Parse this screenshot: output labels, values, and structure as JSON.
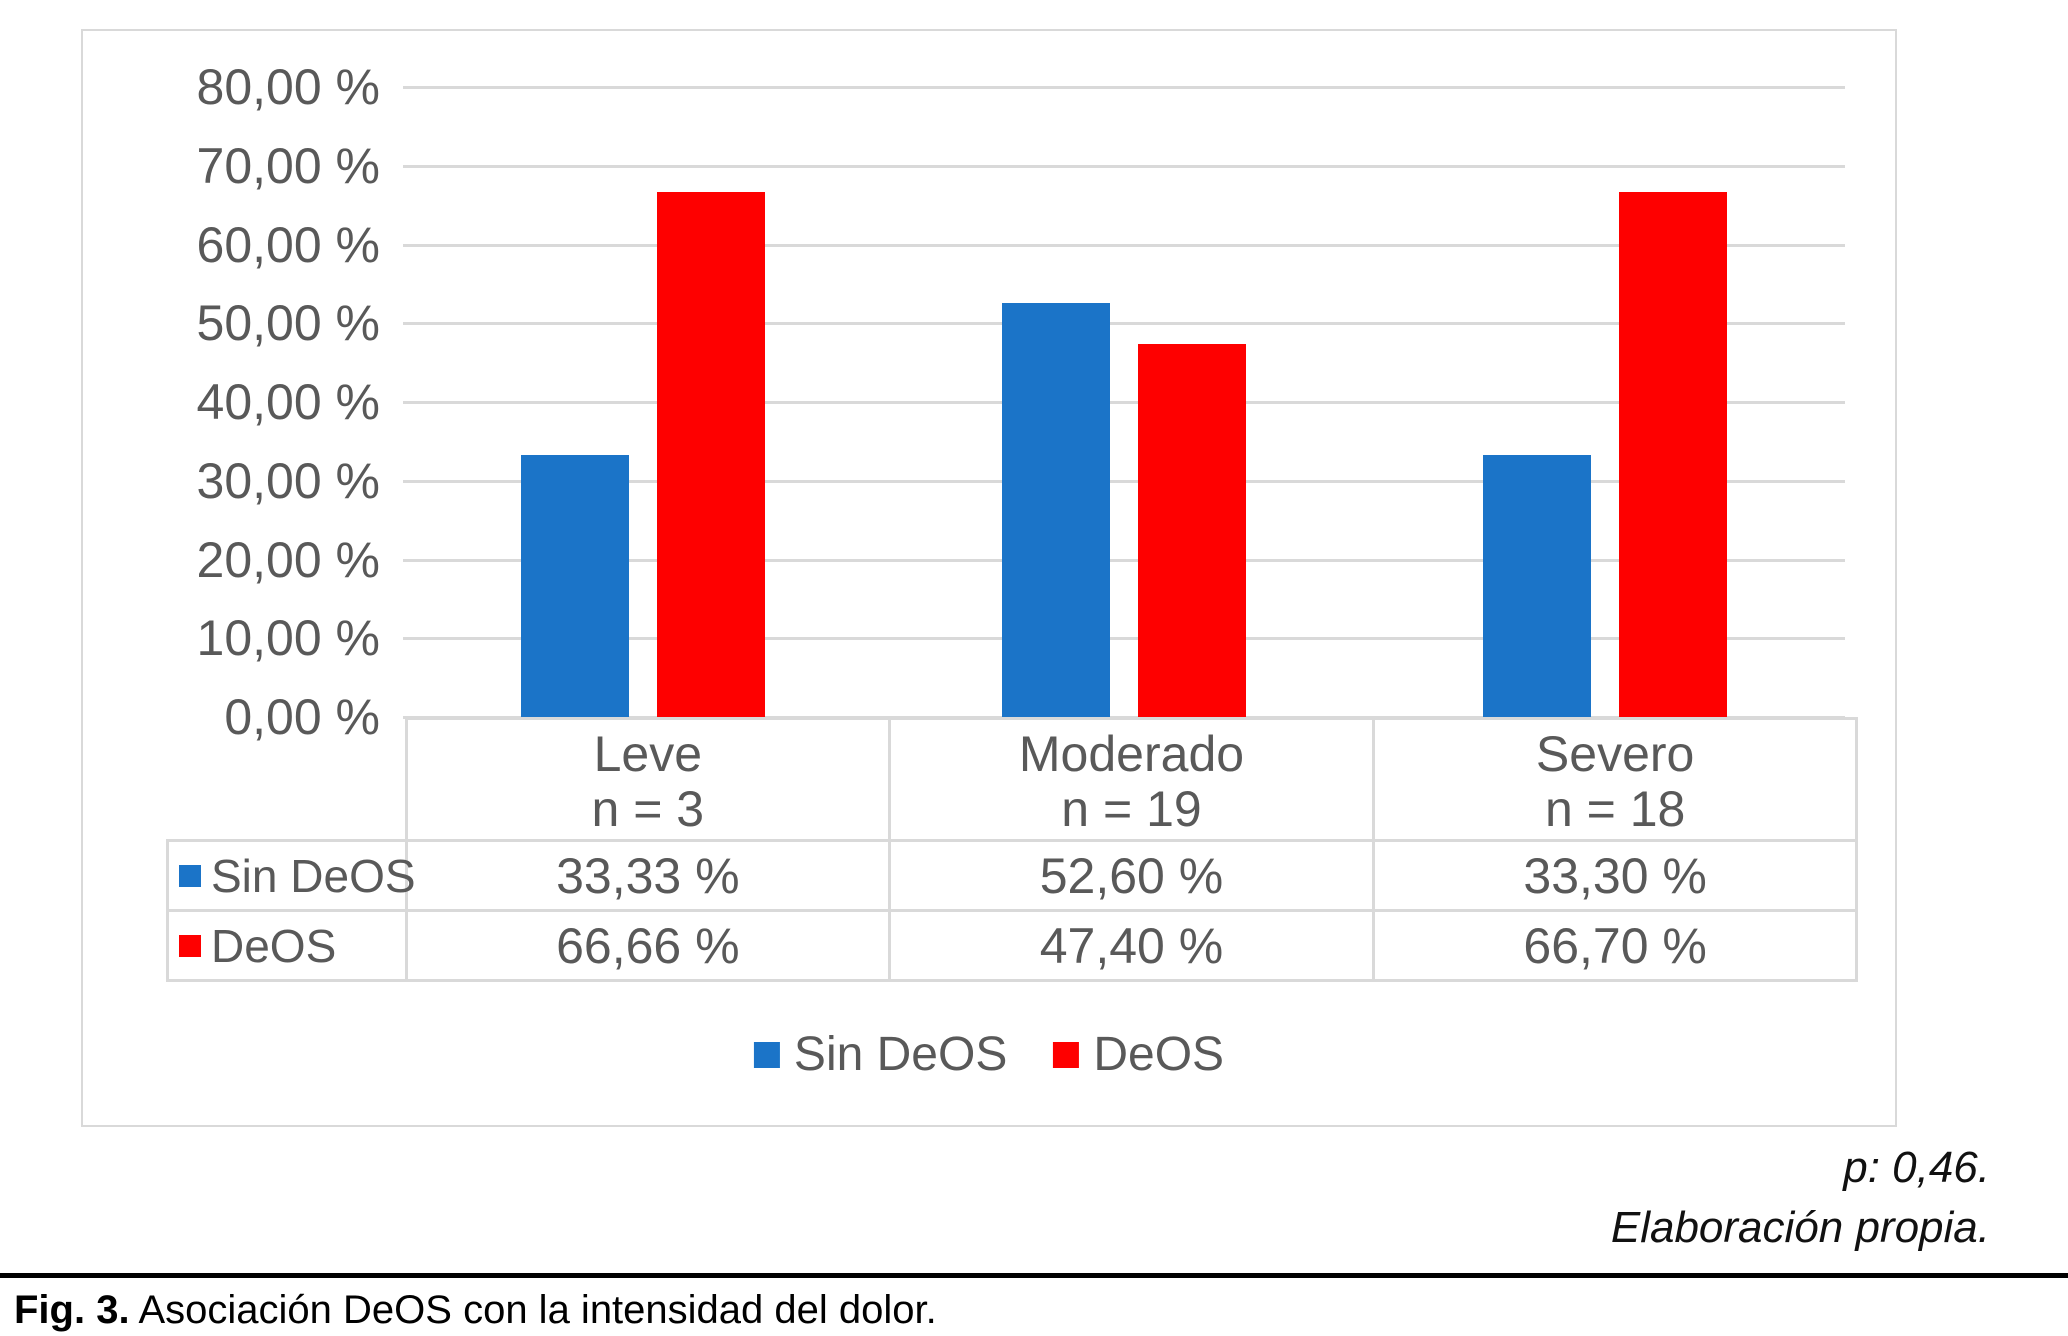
{
  "figure": {
    "caption_label": "Fig. 3.",
    "caption_text": " Asociación DeOS con la intensidad del dolor.",
    "annotations": {
      "p_value": "p: 0,46.",
      "source": "Elaboración propia."
    }
  },
  "chart_data": {
    "type": "bar",
    "title": "",
    "xlabel": "",
    "ylabel": "",
    "ylim": [
      0,
      80
    ],
    "ytick_step": 10,
    "ytick_labels": [
      "80,00 %",
      "70,00 %",
      "60,00 %",
      "50,00 %",
      "40,00 %",
      "30,00 %",
      "20,00 %",
      "10,00 %",
      "0,00 %"
    ],
    "grid": true,
    "legend_position": "bottom",
    "data_table_shown": true,
    "categories": [
      {
        "label": "Leve",
        "sublabel": "n = 3"
      },
      {
        "label": "Moderado",
        "sublabel": "n = 19"
      },
      {
        "label": "Severo",
        "sublabel": "n = 18"
      }
    ],
    "series": [
      {
        "name": "Sin DeOS",
        "color": "#1B74C8",
        "values": [
          33.33,
          52.6,
          33.3
        ],
        "value_labels": [
          "33,33 %",
          "52,60 %",
          "33,30 %"
        ]
      },
      {
        "name": "DeOS",
        "color": "#FE0000",
        "values": [
          66.66,
          47.4,
          66.7
        ],
        "value_labels": [
          "66,66 %",
          "47,40 %",
          "66,70 %"
        ]
      }
    ]
  },
  "colors": {
    "axis_text": "#595959",
    "grid": "#D9D9D9",
    "frame_border": "#D9D9D9"
  }
}
